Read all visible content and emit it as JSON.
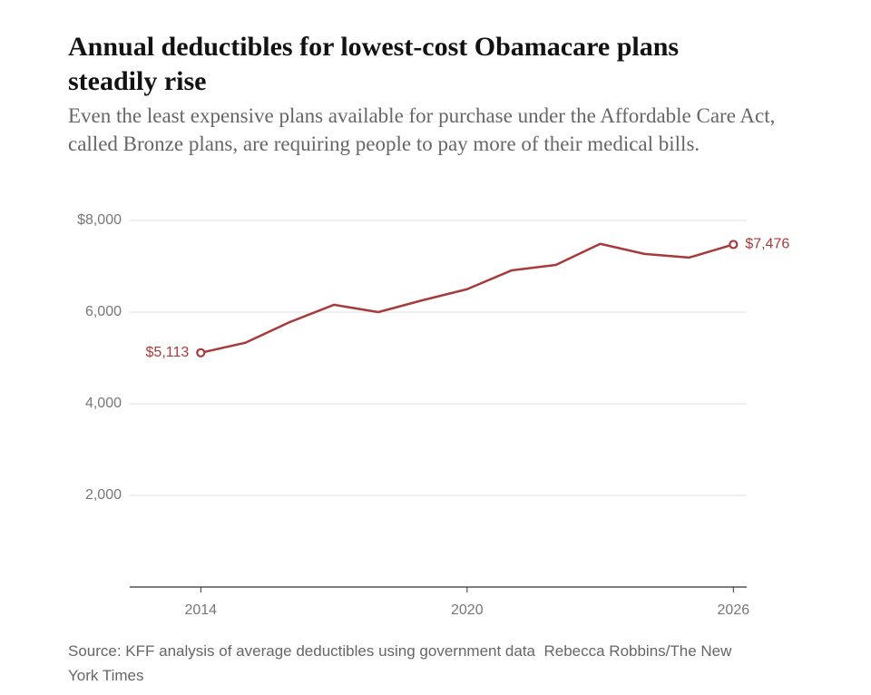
{
  "chart_data": {
    "type": "line",
    "title": "Annual deductibles for lowest-cost Obamacare plans steadily rise",
    "subtitle": "Even the least expensive plans available for purchase under the Affordable Care Act, called Bronze plans, are requiring people to pay more of their medical bills.",
    "x": [
      2014,
      2015,
      2016,
      2017,
      2018,
      2019,
      2020,
      2021,
      2022,
      2023,
      2024,
      2025,
      2026
    ],
    "values": [
      5113,
      5330,
      5780,
      6160,
      6000,
      6260,
      6500,
      6910,
      7030,
      7490,
      7270,
      7190,
      7476
    ],
    "value_labels": [
      "$5,113",
      null,
      null,
      null,
      null,
      null,
      null,
      null,
      null,
      null,
      null,
      null,
      "$7,476"
    ],
    "color": "#a83a3a",
    "xlim": [
      2012.4,
      2026.3
    ],
    "xticks": [
      2014,
      2020,
      2026
    ],
    "ylim": [
      0,
      8000
    ],
    "yticks": [
      {
        "value": 2000,
        "label": "2,000"
      },
      {
        "value": 4000,
        "label": "4,000"
      },
      {
        "value": 6000,
        "label": "6,000"
      },
      {
        "value": 8000,
        "label": "$8,000"
      }
    ],
    "grid": true,
    "source": "Source: KFF analysis of average deductibles using government data",
    "credit": "Rebecca Robbins/The New York Times"
  }
}
